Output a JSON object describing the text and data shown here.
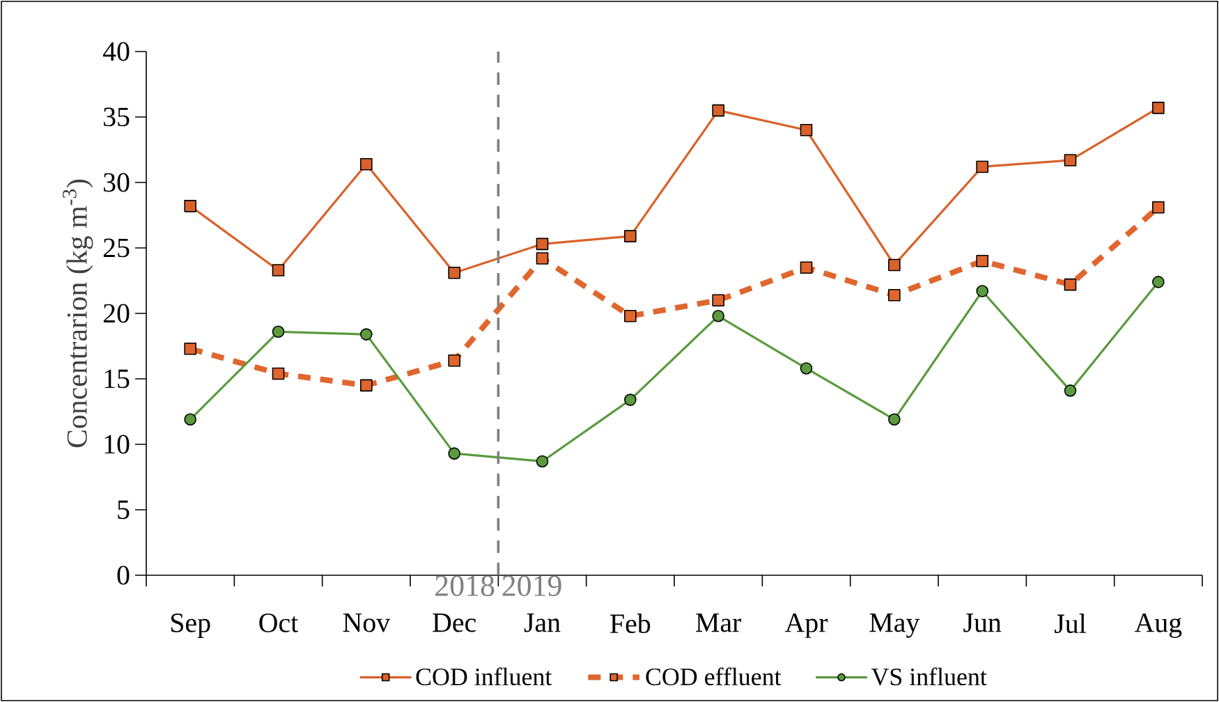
{
  "chart_data": {
    "type": "line",
    "ylabel": "Concentrarion (kg m$^{-3}$)",
    "categories": [
      "Sep",
      "Oct",
      "Nov",
      "Dec",
      "Jan",
      "Feb",
      "Mar",
      "Apr",
      "May",
      "Jun",
      "Jul",
      "Aug"
    ],
    "series": [
      {
        "name": "COD influent",
        "color": "#d9622b",
        "marker": "square",
        "line_style": "solid",
        "values": [
          28.2,
          23.3,
          31.4,
          23.1,
          25.3,
          25.9,
          35.5,
          34.0,
          23.7,
          31.2,
          31.7,
          35.7
        ]
      },
      {
        "name": "COD effluent",
        "color": "#e0662e",
        "marker": "square",
        "line_style": "dashed",
        "values": [
          17.3,
          15.4,
          14.5,
          16.4,
          24.2,
          19.8,
          21.0,
          23.5,
          21.4,
          24.0,
          22.2,
          28.1
        ]
      },
      {
        "name": "VS influent",
        "color": "#5b9a3e",
        "marker": "circle",
        "line_style": "solid",
        "values": [
          11.9,
          18.6,
          18.4,
          9.3,
          8.7,
          13.4,
          19.8,
          15.8,
          11.9,
          21.7,
          14.1,
          22.4
        ]
      }
    ],
    "ylim": [
      0,
      40
    ],
    "yticks": [
      0,
      5,
      10,
      15,
      20,
      25,
      30,
      35,
      40
    ],
    "annotations": [
      "2018",
      "2019"
    ],
    "grid": false,
    "legend": "bottom"
  }
}
